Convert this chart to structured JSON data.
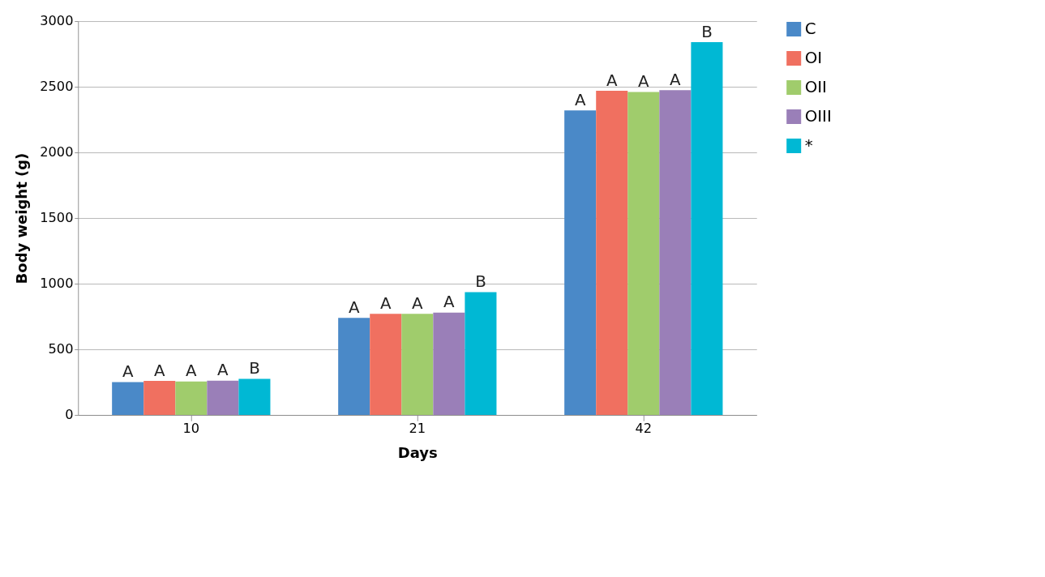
{
  "chart_data": {
    "type": "bar",
    "xlabel": "Days",
    "ylabel": "Body weight (g)",
    "categories": [
      "10",
      "21",
      "42"
    ],
    "series": [
      {
        "name": "C",
        "color": "#4a89c8",
        "values": [
          250,
          740,
          2320
        ],
        "value_labels": [
          "A",
          "A",
          "A"
        ]
      },
      {
        "name": "OI",
        "color": "#f07060",
        "values": [
          260,
          770,
          2470
        ],
        "value_labels": [
          "A",
          "A",
          "A"
        ]
      },
      {
        "name": "OII",
        "color": "#a0cc6c",
        "values": [
          255,
          770,
          2460
        ],
        "value_labels": [
          "A",
          "A",
          "A"
        ]
      },
      {
        "name": "OIII",
        "color": "#9a7fb8",
        "values": [
          262,
          780,
          2475
        ],
        "value_labels": [
          "A",
          "A",
          "A"
        ]
      },
      {
        "name": "*",
        "color": "#00b8d4",
        "values": [
          275,
          935,
          2840
        ],
        "value_labels": [
          "B",
          "B",
          "B"
        ]
      }
    ],
    "ylim": [
      0,
      3000
    ],
    "yticks": [
      0,
      500,
      1000,
      1500,
      2000,
      2500,
      3000
    ],
    "grid": "y",
    "legend": "right"
  }
}
